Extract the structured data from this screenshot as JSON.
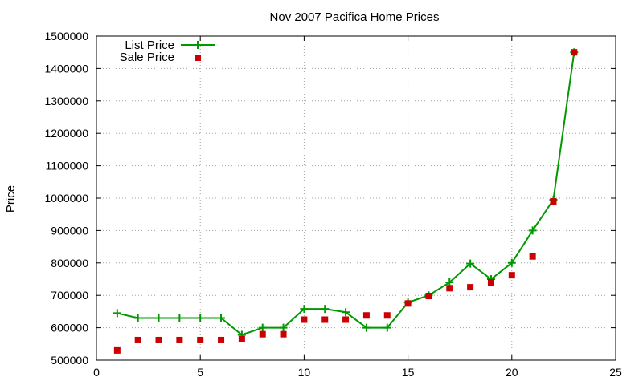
{
  "chart_data": {
    "type": "line",
    "title": "Nov 2007 Pacifica Home Prices",
    "xlabel": "",
    "ylabel": "Price",
    "xlim": [
      0,
      25
    ],
    "ylim": [
      500000,
      1500000
    ],
    "xticks": [
      0,
      5,
      10,
      15,
      20,
      25
    ],
    "yticks": [
      500000,
      600000,
      700000,
      800000,
      900000,
      1000000,
      1100000,
      1200000,
      1300000,
      1400000,
      1500000
    ],
    "grid": true,
    "legend_position": "top-left",
    "series": [
      {
        "name": "List Price",
        "style": "line+cross",
        "color": "#009900",
        "x": [
          1,
          2,
          3,
          4,
          5,
          6,
          7,
          8,
          9,
          10,
          11,
          12,
          13,
          14,
          15,
          16,
          17,
          18,
          19,
          20,
          21,
          22,
          23
        ],
        "y": [
          645000,
          630000,
          630000,
          630000,
          630000,
          630000,
          578000,
          600000,
          600000,
          658000,
          658000,
          648000,
          600000,
          600000,
          678000,
          700000,
          740000,
          798000,
          750000,
          800000,
          900000,
          995000,
          1450000
        ]
      },
      {
        "name": "Sale Price",
        "style": "square",
        "color": "#cc0000",
        "x": [
          1,
          2,
          3,
          4,
          5,
          6,
          7,
          8,
          9,
          10,
          11,
          12,
          13,
          14,
          15,
          16,
          17,
          18,
          19,
          20,
          21,
          22,
          23
        ],
        "y": [
          530000,
          562000,
          562000,
          562000,
          562000,
          562000,
          565000,
          580000,
          580000,
          625000,
          625000,
          625000,
          638000,
          638000,
          675000,
          698000,
          722000,
          725000,
          740000,
          762000,
          820000,
          990000,
          1450000
        ]
      }
    ]
  }
}
